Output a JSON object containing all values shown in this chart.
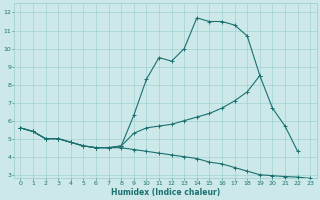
{
  "xlabel": "Humidex (Indice chaleur)",
  "xlim": [
    -0.5,
    23.5
  ],
  "ylim": [
    2.8,
    12.5
  ],
  "xticks": [
    0,
    1,
    2,
    3,
    4,
    5,
    6,
    7,
    8,
    9,
    10,
    11,
    12,
    13,
    14,
    15,
    16,
    17,
    18,
    19,
    20,
    21,
    22,
    23
  ],
  "yticks": [
    3,
    4,
    5,
    6,
    7,
    8,
    9,
    10,
    11,
    12
  ],
  "bg_color": "#cce8e8",
  "grid_color": "#99cccc",
  "line_color": "#1a7070",
  "line1_x": [
    0,
    1,
    2,
    3,
    4,
    5,
    6,
    7,
    8,
    9,
    10,
    11,
    12,
    13,
    14,
    15,
    16,
    17,
    18,
    19,
    20,
    21,
    22
  ],
  "line1_y": [
    5.6,
    5.4,
    5.0,
    5.0,
    4.8,
    4.6,
    4.5,
    4.5,
    4.6,
    6.3,
    8.3,
    9.5,
    9.3,
    10.0,
    11.7,
    11.5,
    11.5,
    11.3,
    10.7,
    8.5,
    6.7,
    5.7,
    4.3
  ],
  "line2_x": [
    0,
    1,
    2,
    3,
    4,
    5,
    6,
    7,
    8,
    9,
    10,
    11,
    12,
    13,
    14,
    15,
    16,
    17,
    18,
    19
  ],
  "line2_y": [
    5.6,
    5.4,
    5.0,
    5.0,
    4.8,
    4.6,
    4.5,
    4.5,
    4.6,
    5.3,
    5.6,
    5.7,
    5.8,
    6.0,
    6.2,
    6.4,
    6.7,
    7.1,
    7.6,
    8.5
  ],
  "line3_x": [
    0,
    1,
    2,
    3,
    4,
    5,
    6,
    7,
    8,
    9,
    10,
    11,
    12,
    13,
    14,
    15,
    16,
    17,
    18,
    19,
    20,
    21,
    22,
    23
  ],
  "line3_y": [
    5.6,
    5.4,
    5.0,
    5.0,
    4.8,
    4.6,
    4.5,
    4.5,
    4.5,
    4.4,
    4.3,
    4.2,
    4.1,
    4.0,
    3.9,
    3.7,
    3.6,
    3.4,
    3.2,
    3.0,
    2.95,
    2.9,
    2.87,
    2.8
  ]
}
